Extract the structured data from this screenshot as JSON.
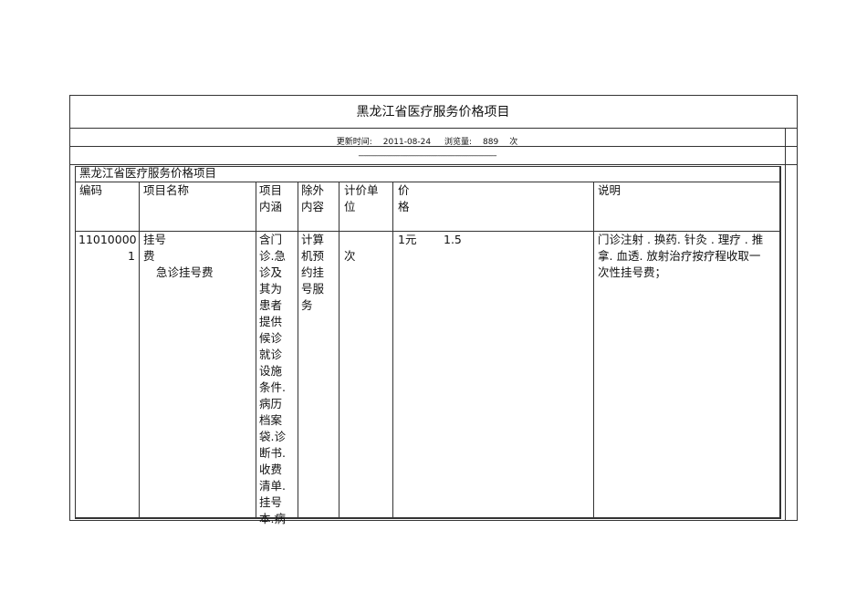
{
  "document": {
    "title": "黑龙江省医疗服务价格项目",
    "meta": {
      "updated_label": "更新时间:",
      "updated_value": "2011-08-24",
      "views_label": "浏览量:",
      "views_value": "889",
      "views_unit": "次"
    },
    "separator": "--------------------------------------------------------------------------------",
    "table": {
      "caption": "黑龙江省医疗服务价格项目",
      "headers": {
        "code": "编码",
        "name": "项目名称",
        "content": [
          "项目",
          "内涵"
        ],
        "excluded": [
          "除外",
          "内容"
        ],
        "unit": [
          "计价单",
          "位"
        ],
        "price": [
          "价",
          "格"
        ],
        "note": "说明"
      },
      "row": {
        "code": [
          "11010000",
          "1"
        ],
        "name": [
          "挂号",
          "费"
        ],
        "subname": "急诊挂号费",
        "content": [
          "含门",
          "诊.急",
          "诊及",
          "其为",
          "患者",
          "提供",
          "候诊",
          "就诊",
          "设施",
          "条件.",
          "病历",
          "档案",
          "袋.诊",
          "断书.",
          "收费",
          "清单.",
          "挂号",
          "本.病"
        ],
        "excluded": [
          "计算",
          "机预",
          "约挂",
          "号服",
          "务"
        ],
        "unit": "次",
        "price_unit": "1元",
        "price_value": "1.5",
        "note": [
          "门诊注射 . 换药. 针灸 . 理疗 . 推",
          "拿. 血透. 放射治疗按疗程收取一",
          "次性挂号费；"
        ]
      }
    }
  }
}
